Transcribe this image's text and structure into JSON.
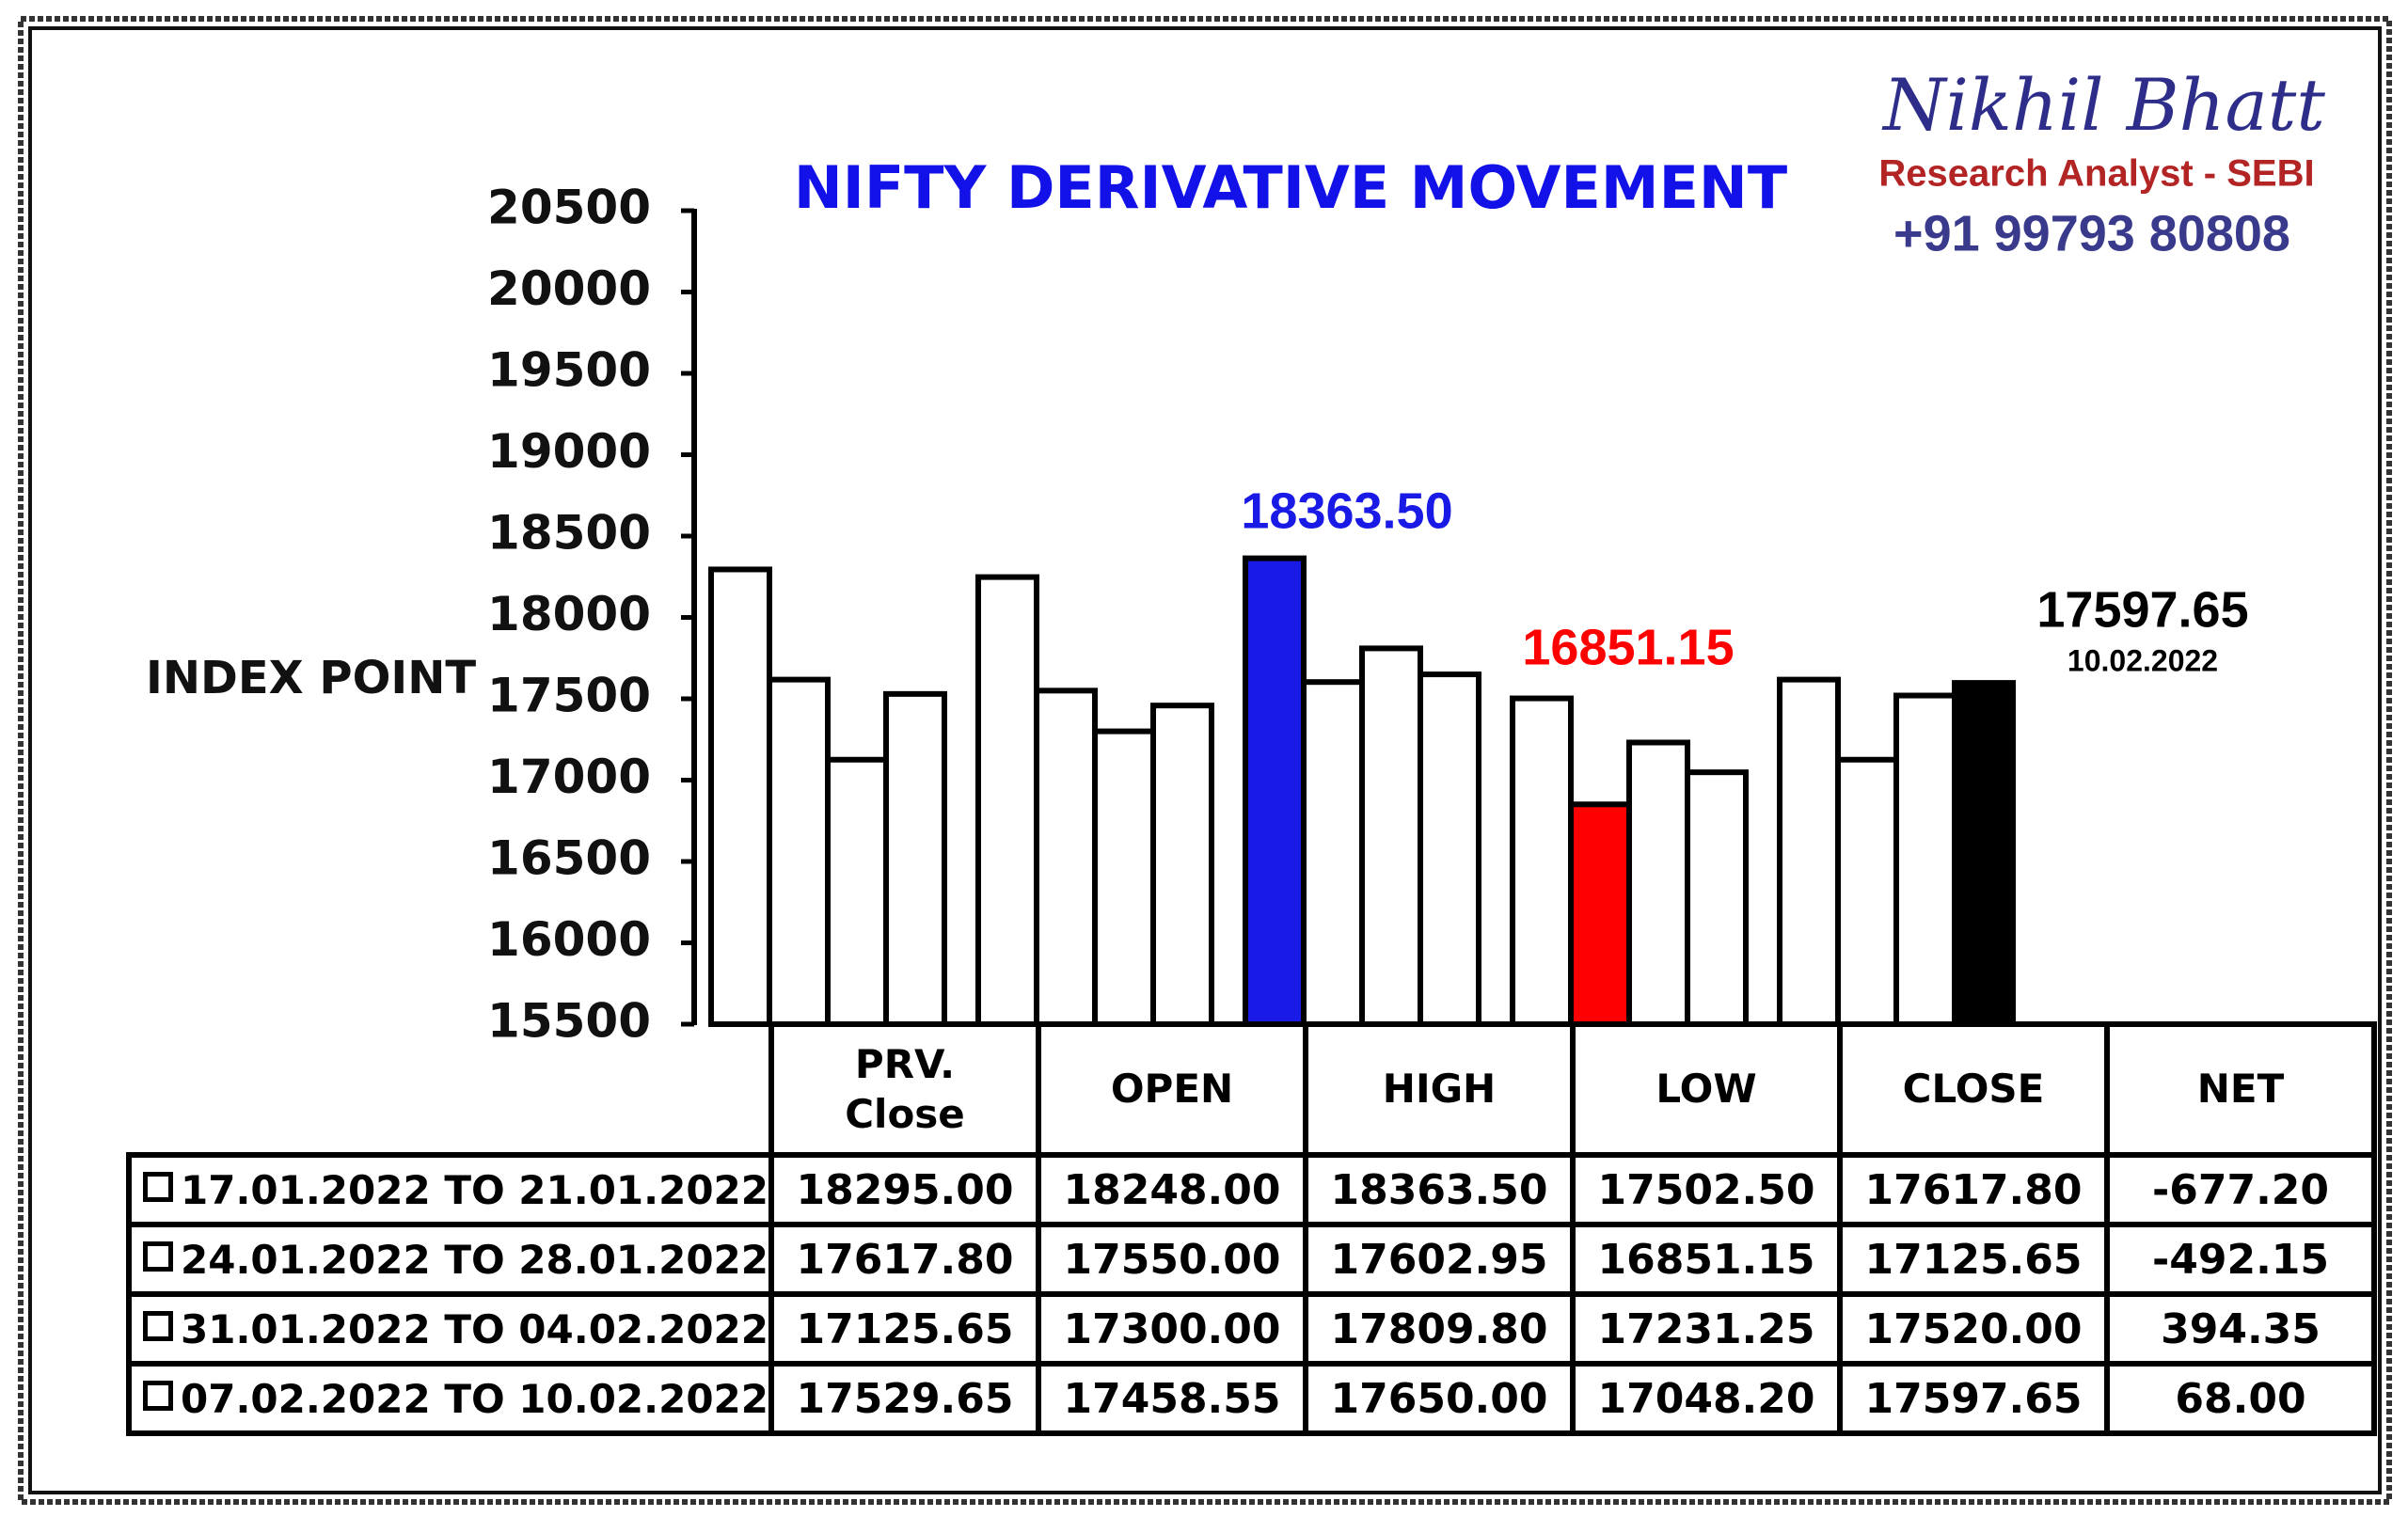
{
  "chart_data": {
    "type": "bar",
    "title": "NIFTY DERIVATIVE MOVEMENT",
    "y_label": "INDEX POINT",
    "categories": [
      "PRV. Close",
      "OPEN",
      "HIGH",
      "LOW",
      "CLOSE"
    ],
    "net_header": "NET",
    "series": [
      {
        "name": "17.01.2022 TO 21.01.2022",
        "color": "#ffffff",
        "values": [
          18295,
          18248,
          18363.5,
          17502.5,
          17617.8
        ],
        "value_labels": [
          "18295.00",
          "18248.00",
          "18363.50",
          "17502.50",
          "17617.80"
        ],
        "net": "-677.20"
      },
      {
        "name": "24.01.2022 TO 28.01.2022",
        "color": "#ffffff",
        "values": [
          17617.8,
          17550,
          17602.95,
          16851.15,
          17125.65
        ],
        "value_labels": [
          "17617.80",
          "17550.00",
          "17602.95",
          "16851.15",
          "17125.65"
        ],
        "net": "-492.15"
      },
      {
        "name": "31.01.2022 TO 04.02.2022",
        "color": "#ffffff",
        "values": [
          17125.65,
          17300,
          17809.8,
          17231.25,
          17520
        ],
        "value_labels": [
          "17125.65",
          "17300.00",
          "17809.80",
          "17231.25",
          "17520.00"
        ],
        "net": "394.35"
      },
      {
        "name": "07.02.2022 TO 10.02.2022",
        "color": "#ffffff",
        "values": [
          17529.65,
          17458.55,
          17650,
          17048.2,
          17597.65
        ],
        "value_labels": [
          "17529.65",
          "17458.55",
          "17650.00",
          "17048.20",
          "17597.65"
        ],
        "net": "68.00"
      }
    ],
    "ylim": [
      15500,
      20500
    ],
    "yticks": [
      15500,
      16000,
      16500,
      17000,
      17500,
      18000,
      18500,
      19000,
      19500,
      20000,
      20500
    ],
    "highlights": [
      {
        "series": 0,
        "index": 2,
        "color": "#1a1ae6"
      },
      {
        "series": 1,
        "index": 3,
        "color": "#ff0000"
      },
      {
        "series": 3,
        "index": 4,
        "color": "#000000",
        "note": "10.02.2022"
      }
    ]
  },
  "brand": {
    "name": "Nikhil Bhatt",
    "role": "Research Analyst - SEBI",
    "phone": "+91 99793 80808"
  }
}
